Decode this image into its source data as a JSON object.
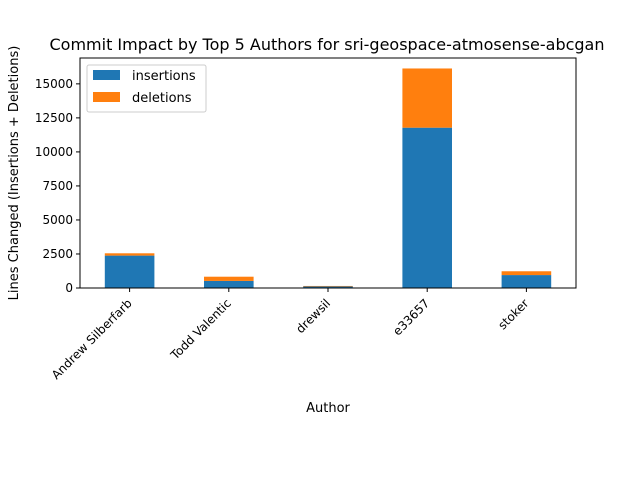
{
  "chart_data": {
    "type": "bar",
    "stacked": true,
    "title": "Commit Impact by Top 5 Authors for sri-geospace-atmosense-abcgan",
    "xlabel": "Author",
    "ylabel": "Lines Changed (Insertions + Deletions)",
    "categories": [
      "Andrew Silberfarb",
      "Todd Valentic",
      "drewsil",
      "e33657",
      "stoker"
    ],
    "series": [
      {
        "name": "insertions",
        "color": "#1f77b4",
        "values": [
          2380,
          520,
          110,
          11780,
          950
        ]
      },
      {
        "name": "deletions",
        "color": "#ff7f0e",
        "values": [
          170,
          310,
          40,
          4350,
          280
        ]
      }
    ],
    "ylim": [
      0,
      16900
    ],
    "yticks": [
      0,
      2500,
      5000,
      7500,
      10000,
      12500,
      15000
    ],
    "ytick_labels": [
      "0",
      "2500",
      "5000",
      "7500",
      "10000",
      "12500",
      "15000"
    ],
    "legend_position": "upper-left",
    "grid": false
  }
}
